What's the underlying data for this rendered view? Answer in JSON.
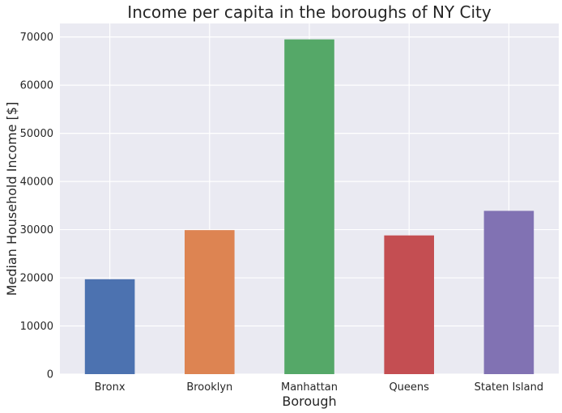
{
  "chart_data": {
    "type": "bar",
    "title": "Income per capita in the boroughs of NY City",
    "xlabel": "Borough",
    "ylabel": "Median Household Income [$]",
    "categories": [
      "Bronx",
      "Brooklyn",
      "Manhattan",
      "Queens",
      "Staten Island"
    ],
    "values": [
      19700,
      29900,
      69500,
      28800,
      33900
    ],
    "colors": [
      "#4c72b0",
      "#dd8452",
      "#55a868",
      "#c44e52",
      "#8172b3"
    ],
    "ylim": [
      0,
      72800
    ],
    "yticks": [
      0,
      10000,
      20000,
      30000,
      40000,
      50000,
      60000,
      70000
    ],
    "ytick_labels": [
      "0",
      "10000",
      "20000",
      "30000",
      "40000",
      "50000",
      "60000",
      "70000"
    ],
    "grid": true,
    "background": "#eaeaf2",
    "grid_color": "#ffffff"
  }
}
